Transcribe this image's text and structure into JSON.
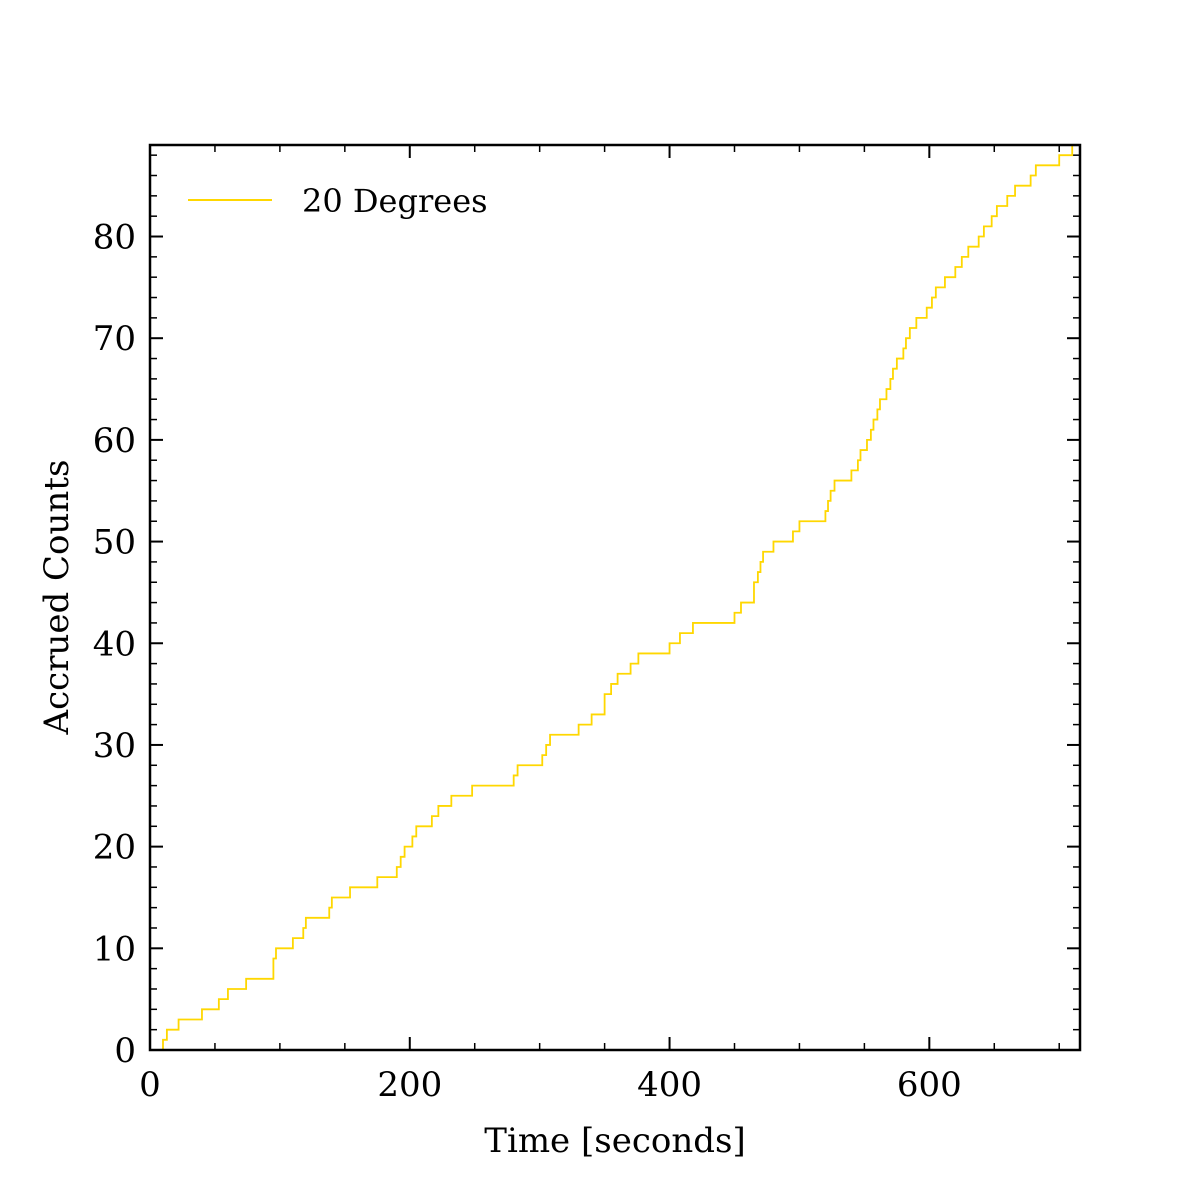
{
  "chart_data": {
    "type": "line",
    "step": true,
    "xlabel": "Time [seconds]",
    "ylabel": "Accrued Counts",
    "xlim": [
      0,
      716
    ],
    "ylim": [
      0,
      89
    ],
    "x_ticks": [
      0,
      200,
      400,
      600
    ],
    "y_ticks": [
      0,
      10,
      20,
      30,
      40,
      50,
      60,
      70,
      80
    ],
    "x_minor_step": 50,
    "y_minor_step": 2,
    "grid": false,
    "legend_position": "top-left",
    "series": [
      {
        "name": "20 Degrees",
        "color": "#FFD700",
        "x": [
          10,
          13,
          15,
          22,
          40,
          53,
          60,
          74,
          95,
          97,
          100,
          110,
          118,
          120,
          138,
          140,
          154,
          175,
          188,
          190,
          193,
          196,
          202,
          205,
          207,
          217,
          222,
          232,
          248,
          280,
          283,
          290,
          302,
          305,
          308,
          313,
          330,
          340,
          350,
          355,
          360,
          370,
          373,
          376,
          400,
          408,
          418,
          450,
          455,
          460,
          465,
          468,
          470,
          472,
          475,
          480,
          490,
          495,
          500,
          520,
          522,
          524,
          527,
          540,
          545,
          547,
          550,
          552,
          555,
          557,
          560,
          562,
          565,
          567,
          570,
          572,
          575,
          580,
          582,
          585,
          590,
          598,
          602,
          605,
          612,
          620,
          625,
          630,
          638,
          642,
          648,
          652,
          660,
          666,
          678,
          682,
          688,
          700,
          710,
          716
        ],
        "y": [
          1,
          2,
          2,
          3,
          4,
          5,
          6,
          7,
          9,
          10,
          10,
          11,
          12,
          13,
          14,
          15,
          16,
          17,
          17,
          18,
          19,
          20,
          21,
          22,
          22,
          23,
          24,
          25,
          26,
          27,
          28,
          28,
          29,
          30,
          31,
          31,
          32,
          33,
          35,
          36,
          37,
          38,
          38,
          39,
          40,
          41,
          42,
          43,
          44,
          44,
          46,
          47,
          48,
          49,
          49,
          50,
          50,
          51,
          52,
          53,
          54,
          55,
          56,
          57,
          58,
          59,
          59,
          60,
          61,
          62,
          63,
          64,
          64,
          65,
          66,
          67,
          68,
          69,
          70,
          71,
          72,
          73,
          74,
          75,
          76,
          77,
          78,
          79,
          80,
          81,
          82,
          83,
          84,
          85,
          86,
          87,
          87,
          88,
          89,
          89
        ]
      }
    ]
  }
}
